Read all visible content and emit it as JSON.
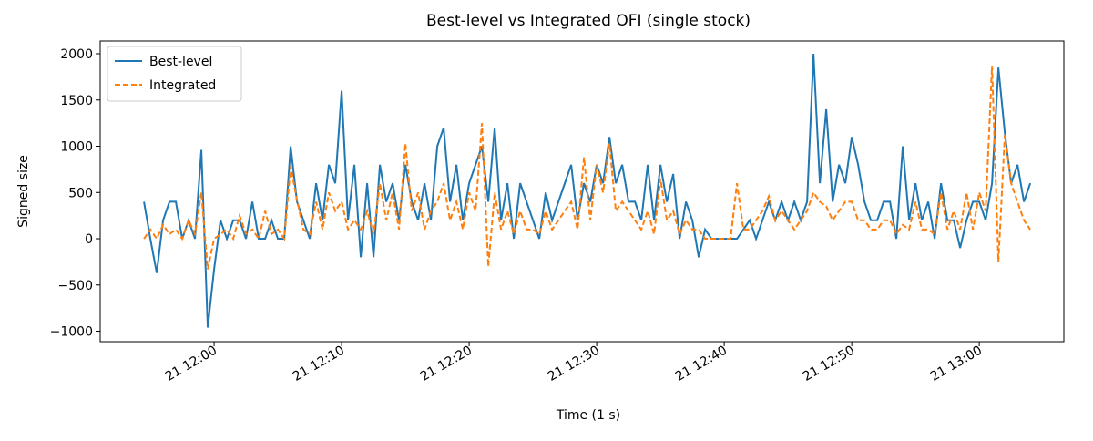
{
  "chart_data": {
    "type": "line",
    "title": "Best-level vs Integrated OFI (single stock)",
    "x_label": "Time (1 s)",
    "y_label": "Signed size",
    "x": [
      "11:54:30",
      "11:55:00",
      "11:55:30",
      "11:56:00",
      "11:56:30",
      "11:57:00",
      "11:57:30",
      "11:58:00",
      "11:58:30",
      "11:59:00",
      "11:59:30",
      "12:00:00",
      "12:00:30",
      "12:01:00",
      "12:01:30",
      "12:02:00",
      "12:02:30",
      "12:03:00",
      "12:03:30",
      "12:04:00",
      "12:04:30",
      "12:05:00",
      "12:05:30",
      "12:06:00",
      "12:06:30",
      "12:07:00",
      "12:07:30",
      "12:08:00",
      "12:08:30",
      "12:09:00",
      "12:09:30",
      "12:10:00",
      "12:10:30",
      "12:11:00",
      "12:11:30",
      "12:12:00",
      "12:12:30",
      "12:13:00",
      "12:13:30",
      "12:14:00",
      "12:14:30",
      "12:15:00",
      "12:15:30",
      "12:16:00",
      "12:16:30",
      "12:17:00",
      "12:17:30",
      "12:18:00",
      "12:18:30",
      "12:19:00",
      "12:19:30",
      "12:20:00",
      "12:20:30",
      "12:21:00",
      "12:21:30",
      "12:22:00",
      "12:22:30",
      "12:23:00",
      "12:23:30",
      "12:24:00",
      "12:24:30",
      "12:25:00",
      "12:25:30",
      "12:26:00",
      "12:26:30",
      "12:27:00",
      "12:27:30",
      "12:28:00",
      "12:28:30",
      "12:29:00",
      "12:29:30",
      "12:30:00",
      "12:30:30",
      "12:31:00",
      "12:31:30",
      "12:32:00",
      "12:32:30",
      "12:33:00",
      "12:33:30",
      "12:34:00",
      "12:34:30",
      "12:35:00",
      "12:35:30",
      "12:36:00",
      "12:36:30",
      "12:37:00",
      "12:37:30",
      "12:38:00",
      "12:38:30",
      "12:39:00",
      "12:39:30",
      "12:40:00",
      "12:40:30",
      "12:41:00",
      "12:41:30",
      "12:42:00",
      "12:42:30",
      "12:43:00",
      "12:43:30",
      "12:44:00",
      "12:44:30",
      "12:45:00",
      "12:45:30",
      "12:46:00",
      "12:46:30",
      "12:47:00",
      "12:47:30",
      "12:48:00",
      "12:48:30",
      "12:49:00",
      "12:49:30",
      "12:50:00",
      "12:50:30",
      "12:51:00",
      "12:51:30",
      "12:52:00",
      "12:52:30",
      "12:53:00",
      "12:53:30",
      "12:54:00",
      "12:54:30",
      "12:55:00",
      "12:55:30",
      "12:56:00",
      "12:56:30",
      "12:57:00",
      "12:57:30",
      "12:58:00",
      "12:58:30",
      "12:59:00",
      "12:59:30",
      "13:00:00",
      "13:00:30",
      "13:01:00",
      "13:01:30",
      "13:02:00",
      "13:02:30",
      "13:03:00",
      "13:03:30",
      "13:04:00"
    ],
    "series": [
      {
        "name": "Best-level",
        "color": "#1f77b4",
        "dashed": false,
        "values": [
          400,
          0,
          -370,
          200,
          400,
          400,
          0,
          200,
          0,
          960,
          -960,
          -330,
          200,
          0,
          200,
          200,
          0,
          400,
          0,
          0,
          200,
          0,
          0,
          1000,
          400,
          200,
          0,
          600,
          200,
          800,
          600,
          1600,
          200,
          800,
          -200,
          600,
          -200,
          800,
          400,
          600,
          200,
          800,
          400,
          200,
          600,
          200,
          1000,
          1200,
          400,
          800,
          200,
          600,
          800,
          1000,
          400,
          1200,
          200,
          600,
          0,
          600,
          400,
          200,
          0,
          500,
          200,
          400,
          600,
          800,
          200,
          600,
          400,
          800,
          600,
          1100,
          600,
          800,
          400,
          400,
          200,
          800,
          200,
          800,
          400,
          700,
          0,
          400,
          200,
          -200,
          100,
          0,
          0,
          0,
          0,
          0,
          100,
          200,
          0,
          200,
          400,
          200,
          400,
          200,
          400,
          200,
          400,
          2000,
          600,
          1400,
          400,
          800,
          600,
          1100,
          800,
          400,
          200,
          200,
          400,
          400,
          0,
          1000,
          200,
          600,
          200,
          400,
          0,
          600,
          200,
          200,
          -100,
          200,
          400,
          400,
          200,
          600,
          1850,
          1150,
          600,
          800,
          400,
          600
        ]
      },
      {
        "name": "Integrated",
        "color": "#ff7f0e",
        "dashed": true,
        "values": [
          0,
          100,
          0,
          150,
          50,
          100,
          0,
          200,
          50,
          500,
          -330,
          0,
          50,
          100,
          0,
          250,
          50,
          100,
          0,
          300,
          50,
          100,
          0,
          780,
          420,
          100,
          50,
          400,
          100,
          500,
          300,
          400,
          100,
          200,
          100,
          300,
          50,
          600,
          200,
          500,
          100,
          1030,
          300,
          500,
          100,
          300,
          400,
          600,
          200,
          400,
          100,
          500,
          300,
          1250,
          -300,
          500,
          100,
          300,
          50,
          300,
          100,
          100,
          50,
          300,
          100,
          200,
          300,
          400,
          100,
          880,
          200,
          800,
          500,
          1030,
          300,
          400,
          300,
          200,
          100,
          300,
          50,
          650,
          200,
          300,
          50,
          200,
          100,
          100,
          0,
          0,
          0,
          0,
          0,
          600,
          100,
          100,
          200,
          300,
          460,
          200,
          300,
          200,
          100,
          200,
          300,
          500,
          400,
          350,
          200,
          300,
          400,
          400,
          200,
          200,
          100,
          100,
          200,
          200,
          50,
          150,
          100,
          400,
          100,
          100,
          50,
          500,
          100,
          300,
          100,
          500,
          100,
          500,
          300,
          1870,
          -250,
          1120,
          600,
          400,
          200,
          100
        ]
      }
    ],
    "xlim": [
      "11:51:04",
      "13:06:38"
    ],
    "xticks": [
      {
        "value": "12:00:00",
        "label": "21 12:00"
      },
      {
        "value": "12:10:00",
        "label": "21 12:10"
      },
      {
        "value": "12:20:00",
        "label": "21 12:20"
      },
      {
        "value": "12:30:00",
        "label": "21 12:30"
      },
      {
        "value": "12:40:00",
        "label": "21 12:40"
      },
      {
        "value": "12:50:00",
        "label": "21 12:50"
      },
      {
        "value": "13:00:00",
        "label": "21 13:00"
      }
    ],
    "ylim": [
      -1113,
      2138
    ],
    "yticks": [
      {
        "value": -1000,
        "label": "−1000"
      },
      {
        "value": -500,
        "label": "−500"
      },
      0,
      500,
      1000,
      1500,
      2000
    ],
    "legend": "upper left",
    "grid": false
  }
}
